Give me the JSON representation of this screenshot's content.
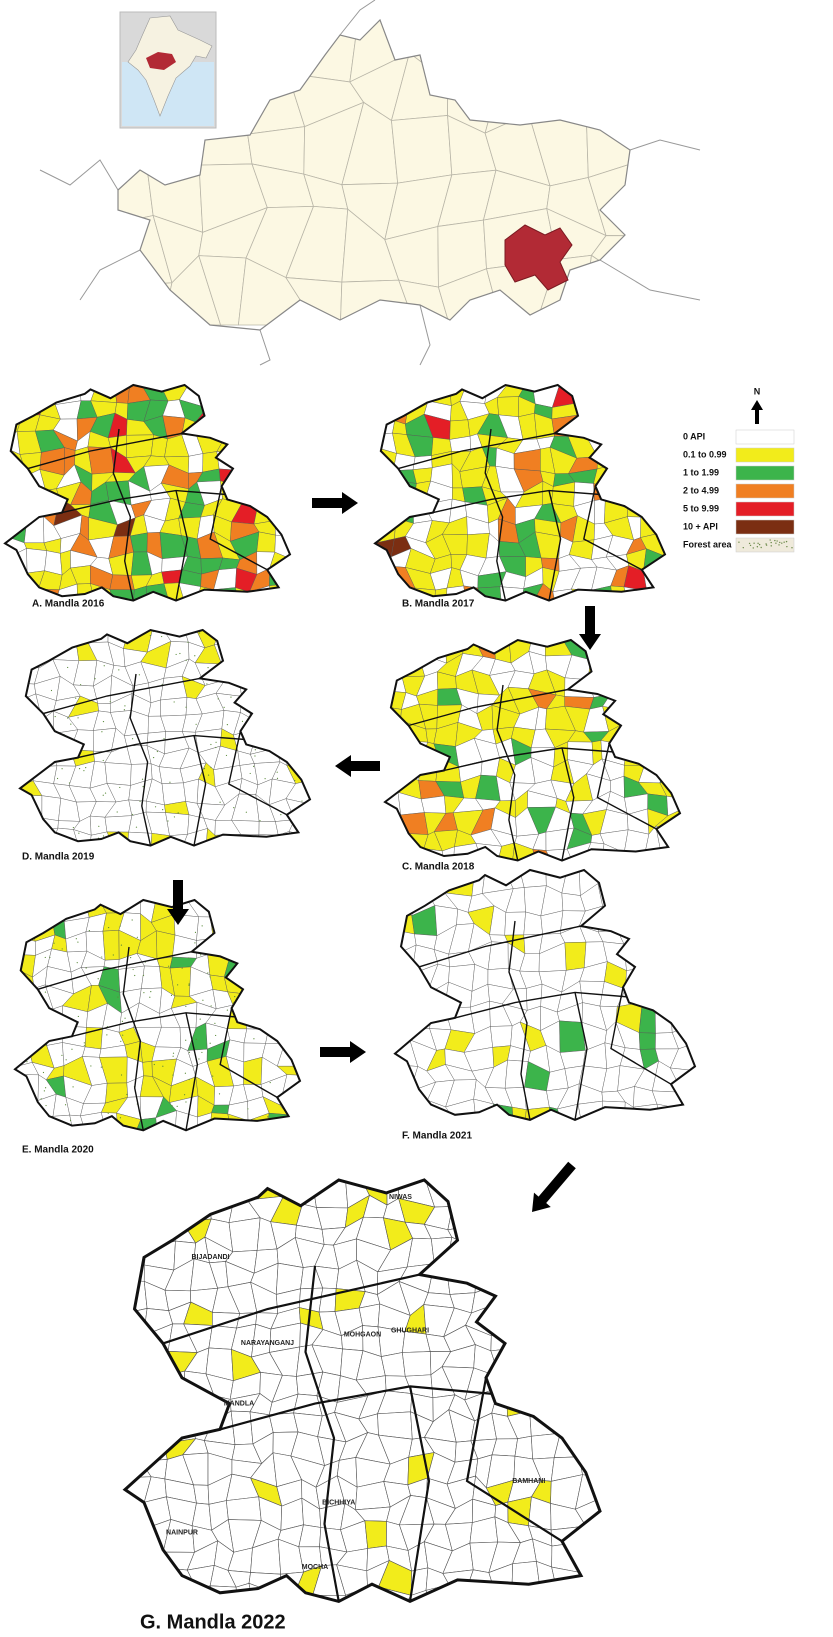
{
  "legend": {
    "north": "N",
    "items": [
      {
        "label": "0 API",
        "color": "#ffffff"
      },
      {
        "label": "0.1 to 0.99",
        "color": "#f2ec1b"
      },
      {
        "label": "1 to 1.99",
        "color": "#3cb44b"
      },
      {
        "label": "2 to 4.99",
        "color": "#f07f22"
      },
      {
        "label": "5 to 9.99",
        "color": "#e41e26"
      },
      {
        "label": "10 + API",
        "color": "#7b2e12"
      },
      {
        "label": "Forest area",
        "color": "#efeadb"
      }
    ]
  },
  "panels": [
    {
      "label": "A. Mandla 2016"
    },
    {
      "label": "B. Mandla 2017"
    },
    {
      "label": "C. Mandla 2018"
    },
    {
      "label": "D. Mandla 2019"
    },
    {
      "label": "E. Mandla 2020"
    },
    {
      "label": "F. Mandla 2021"
    },
    {
      "label": "G. Mandla 2022"
    }
  ],
  "map_labels": [
    "NIWAS",
    "BIJADANDI",
    "NARAYANGANJ",
    "MOHGAON",
    "MANDLA",
    "GHUGHARI",
    "NAINPUR",
    "BICHHIYA",
    "MOCHA",
    "BAMHANI"
  ]
}
